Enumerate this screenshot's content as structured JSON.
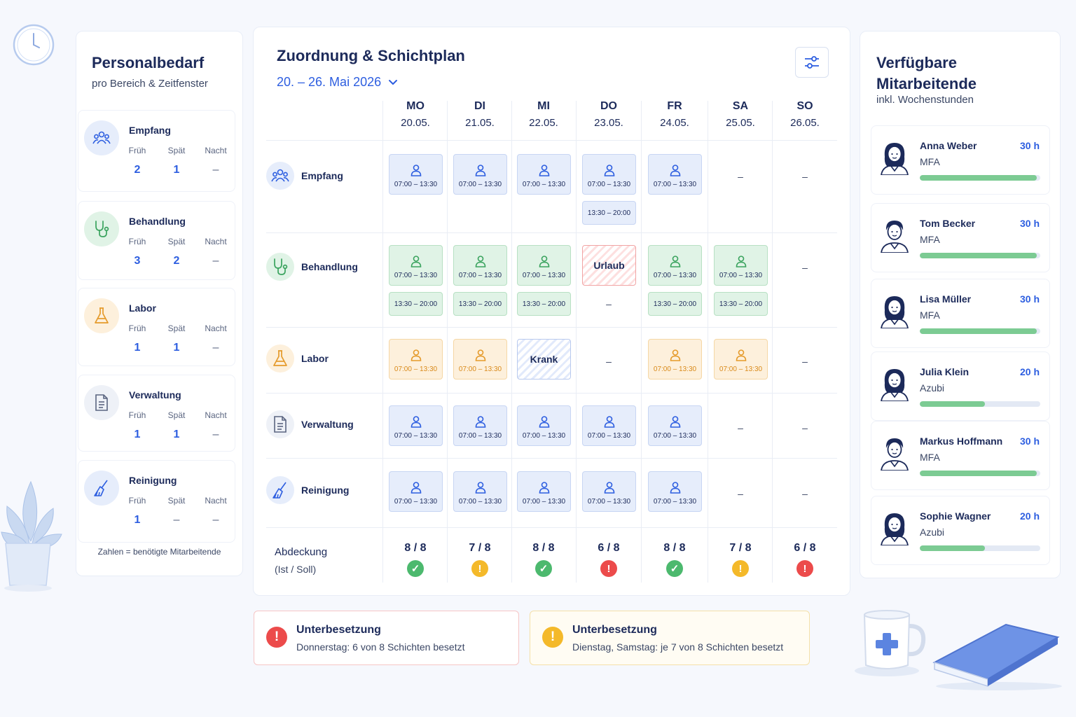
{
  "colors": {
    "accent": "#2d5ee0",
    "ok": "#4cb96e",
    "warn": "#f4b92a",
    "bad": "#ec4b4b"
  },
  "left": {
    "title": "Personalbedarf",
    "subtitle": "pro Bereich & Zeitfenster",
    "col_labels": [
      "Früh",
      "Spät",
      "Nacht"
    ],
    "depts": [
      {
        "name": "Empfang",
        "icon": "group-icon",
        "values": [
          "2",
          "1",
          "–"
        ]
      },
      {
        "name": "Behandlung",
        "icon": "stethoscope-icon",
        "values": [
          "3",
          "2",
          "–"
        ]
      },
      {
        "name": "Labor",
        "icon": "flask-icon",
        "values": [
          "1",
          "1",
          "–"
        ]
      },
      {
        "name": "Verwaltung",
        "icon": "document-icon",
        "values": [
          "1",
          "1",
          "–"
        ]
      },
      {
        "name": "Reinigung",
        "icon": "broom-icon",
        "values": [
          "1",
          "–",
          "–"
        ]
      }
    ],
    "footer": "Zahlen = benötigte Mitarbeitende"
  },
  "center": {
    "title": "Zuordnung & Schichtplan",
    "range": "20. – 26. Mai 2026",
    "days": [
      {
        "d": "MO",
        "date": "20.05."
      },
      {
        "d": "DI",
        "date": "21.05."
      },
      {
        "d": "MI",
        "date": "22.05."
      },
      {
        "d": "DO",
        "date": "23.05."
      },
      {
        "d": "FR",
        "date": "24.05."
      },
      {
        "d": "SA",
        "date": "25.05."
      },
      {
        "d": "SO",
        "date": "26.05."
      }
    ],
    "rows": [
      {
        "name": "Empfang",
        "icon": "group-icon",
        "color": "blue",
        "cells": [
          {
            "t": "shift",
            "time": "07:00 – 13:30"
          },
          {
            "t": "shift",
            "time": "07:00 – 13:30"
          },
          {
            "t": "shift",
            "time": "07:00 – 13:30"
          },
          {
            "t": "shift",
            "time": "07:00 – 13:30",
            "second": "13:30 – 20:00"
          },
          {
            "t": "shift",
            "time": "07:00 – 13:30"
          },
          {
            "t": "dash",
            "text": "–"
          },
          {
            "t": "dash",
            "text": "–"
          }
        ]
      },
      {
        "name": "Behandlung",
        "icon": "stethoscope-icon",
        "color": "green",
        "cells": [
          {
            "t": "shift",
            "time": "07:00 – 13:30",
            "second": "13:30 – 20:00"
          },
          {
            "t": "shift",
            "time": "07:00 – 13:30",
            "second": "13:30 – 20:00"
          },
          {
            "t": "shift",
            "time": "07:00 – 13:30",
            "second": "13:30 – 20:00"
          },
          {
            "t": "special",
            "label": "Urlaub",
            "style": "red",
            "below": "–"
          },
          {
            "t": "shift",
            "time": "07:00 – 13:30",
            "second": "13:30 – 20:00"
          },
          {
            "t": "shift",
            "time": "07:00 – 13:30",
            "second": "13:30 – 20:00"
          },
          {
            "t": "dash",
            "text": "–"
          }
        ]
      },
      {
        "name": "Labor",
        "icon": "flask-icon",
        "color": "orange",
        "cells": [
          {
            "t": "shift",
            "time": "07:00 – 13:30"
          },
          {
            "t": "shift",
            "time": "07:00 – 13:30"
          },
          {
            "t": "special",
            "label": "Krank",
            "style": "blue"
          },
          {
            "t": "dash",
            "text": "–"
          },
          {
            "t": "shift",
            "time": "07:00 – 13:30"
          },
          {
            "t": "shift",
            "time": "07:00 – 13:30"
          },
          {
            "t": "dash",
            "text": "–"
          }
        ]
      },
      {
        "name": "Verwaltung",
        "icon": "document-icon",
        "color": "blue",
        "cells": [
          {
            "t": "shift",
            "time": "07:00 – 13:30"
          },
          {
            "t": "shift",
            "time": "07:00 – 13:30"
          },
          {
            "t": "shift",
            "time": "07:00 – 13:30"
          },
          {
            "t": "shift",
            "time": "07:00 – 13:30"
          },
          {
            "t": "shift",
            "time": "07:00 – 13:30"
          },
          {
            "t": "dash",
            "text": "–"
          },
          {
            "t": "dash",
            "text": "–"
          }
        ]
      },
      {
        "name": "Reinigung",
        "icon": "broom-icon",
        "color": "blue",
        "cells": [
          {
            "t": "shift",
            "time": "07:00 – 13:30"
          },
          {
            "t": "shift",
            "time": "07:00 – 13:30"
          },
          {
            "t": "shift",
            "time": "07:00 – 13:30"
          },
          {
            "t": "shift",
            "time": "07:00 – 13:30"
          },
          {
            "t": "shift",
            "time": "07:00 – 13:30"
          },
          {
            "t": "dash",
            "text": "–"
          },
          {
            "t": "dash",
            "text": "–"
          }
        ]
      }
    ],
    "coverage_label": "Abdeckung",
    "coverage_sub": "(Ist / Soll)",
    "coverage": [
      {
        "r": "8 / 8",
        "s": "ok"
      },
      {
        "r": "7 / 8",
        "s": "warn"
      },
      {
        "r": "8 / 8",
        "s": "ok"
      },
      {
        "r": "6 / 8",
        "s": "bad"
      },
      {
        "r": "8 / 8",
        "s": "ok"
      },
      {
        "r": "7 / 8",
        "s": "warn"
      },
      {
        "r": "6 / 8",
        "s": "bad"
      }
    ]
  },
  "right": {
    "title": "Verfügbare Mitarbeitende",
    "subtitle": "inkl. Wochenstunden",
    "employees": [
      {
        "name": "Anna Weber",
        "role": "MFA",
        "hours": "30 h",
        "load": 0.97,
        "gender": "f"
      },
      {
        "name": "Tom Becker",
        "role": "MFA",
        "hours": "30 h",
        "load": 0.97,
        "gender": "m"
      },
      {
        "name": "Lisa Müller",
        "role": "MFA",
        "hours": "30 h",
        "load": 0.97,
        "gender": "f"
      },
      {
        "name": "Julia Klein",
        "role": "Azubi",
        "hours": "20 h",
        "load": 0.54,
        "gender": "f"
      },
      {
        "name": "Markus Hoffmann",
        "role": "MFA",
        "hours": "30 h",
        "load": 0.97,
        "gender": "m"
      },
      {
        "name": "Sophie Wagner",
        "role": "Azubi",
        "hours": "20 h",
        "load": 0.54,
        "gender": "f"
      }
    ]
  },
  "alerts": [
    {
      "title": "Unterbesetzung",
      "text": "Donnerstag: 6 von 8 Schichten besetzt",
      "level": "bad"
    },
    {
      "title": "Unterbesetzung",
      "text": "Dienstag, Samstag: je 7 von 8 Schichten besetzt",
      "level": "warn"
    }
  ]
}
